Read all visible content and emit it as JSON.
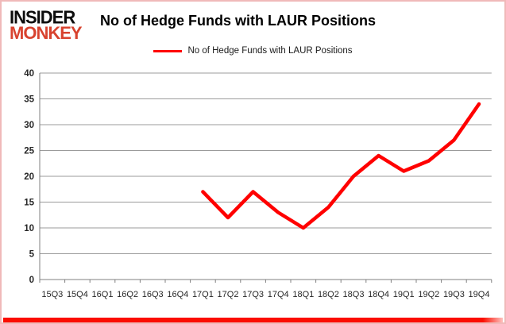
{
  "logo": {
    "line1": "INSIDER",
    "line2": "MONKEY",
    "accent_color": "#d8432f"
  },
  "title": "No of Hedge Funds with LAUR Positions",
  "legend": {
    "label": "No of Hedge Funds with LAUR Positions",
    "color": "#ff0000"
  },
  "chart_data": {
    "type": "line",
    "title": "No of Hedge Funds with LAUR Positions",
    "categories": [
      "15Q3",
      "15Q4",
      "16Q1",
      "16Q2",
      "16Q3",
      "16Q4",
      "17Q1",
      "17Q2",
      "17Q3",
      "17Q4",
      "18Q1",
      "18Q2",
      "18Q3",
      "18Q4",
      "19Q1",
      "19Q2",
      "19Q3",
      "19Q4"
    ],
    "series": [
      {
        "name": "No of Hedge Funds with LAUR Positions",
        "color": "#ff0000",
        "values": [
          null,
          null,
          null,
          null,
          null,
          null,
          17,
          12,
          17,
          13,
          10,
          14,
          20,
          24,
          21,
          23,
          27,
          34
        ]
      }
    ],
    "xlabel": "",
    "ylabel": "",
    "ylim": [
      0,
      40
    ],
    "yticks": [
      0,
      5,
      10,
      15,
      20,
      25,
      30,
      35,
      40
    ],
    "grid": true,
    "legend_position": "top",
    "gridline_color": "#9b9b9b",
    "axis_color": "#808080",
    "tick_label_color": "#262626"
  }
}
